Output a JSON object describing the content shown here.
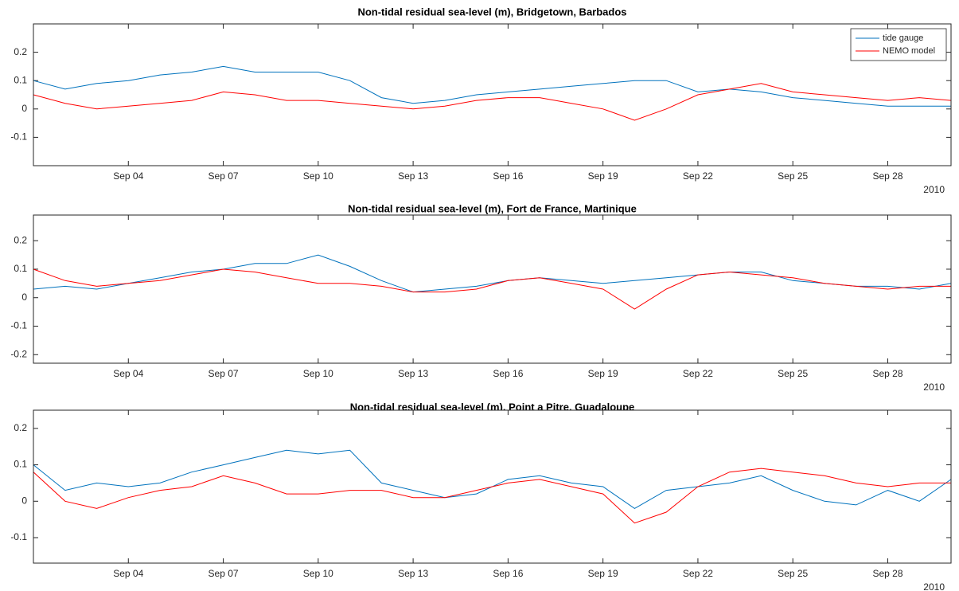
{
  "chart_data": [
    {
      "type": "line",
      "title": "Non-tidal residual sea-level (m), Bridgetown, Barbados",
      "x": [
        "2010-09-01",
        "2010-09-02",
        "2010-09-03",
        "2010-09-04",
        "2010-09-05",
        "2010-09-06",
        "2010-09-07",
        "2010-09-08",
        "2010-09-09",
        "2010-09-10",
        "2010-09-11",
        "2010-09-12",
        "2010-09-13",
        "2010-09-14",
        "2010-09-15",
        "2010-09-16",
        "2010-09-17",
        "2010-09-18",
        "2010-09-19",
        "2010-09-20",
        "2010-09-21",
        "2010-09-22",
        "2010-09-23",
        "2010-09-24",
        "2010-09-25",
        "2010-09-26",
        "2010-09-27",
        "2010-09-28",
        "2010-09-29",
        "2010-09-30"
      ],
      "xlim": [
        "2010-09-01",
        "2010-09-30"
      ],
      "xticks": [
        {
          "value": "2010-09-04",
          "label": "Sep 04"
        },
        {
          "value": "2010-09-07",
          "label": "Sep 07"
        },
        {
          "value": "2010-09-10",
          "label": "Sep 10"
        },
        {
          "value": "2010-09-13",
          "label": "Sep 13"
        },
        {
          "value": "2010-09-16",
          "label": "Sep 16"
        },
        {
          "value": "2010-09-19",
          "label": "Sep 19"
        },
        {
          "value": "2010-09-22",
          "label": "Sep 22"
        },
        {
          "value": "2010-09-25",
          "label": "Sep 25"
        },
        {
          "value": "2010-09-28",
          "label": "Sep 28"
        }
      ],
      "x_year_label": "2010",
      "ylim": [
        -0.2,
        0.3
      ],
      "yticks": [
        -0.1,
        0,
        0.1,
        0.2
      ],
      "legend": "upper right",
      "series": [
        {
          "name": "tide gauge",
          "color": "#0072bd",
          "values": [
            0.1,
            0.07,
            0.09,
            0.1,
            0.12,
            0.13,
            0.15,
            0.13,
            0.13,
            0.13,
            0.1,
            0.04,
            0.02,
            0.03,
            0.05,
            0.06,
            0.07,
            0.08,
            0.09,
            0.1,
            0.1,
            0.06,
            0.07,
            0.06,
            0.04,
            0.03,
            0.02,
            0.01,
            0.01,
            0.01
          ]
        },
        {
          "name": "NEMO model",
          "color": "#ff0000",
          "values": [
            0.05,
            0.02,
            0.0,
            0.01,
            0.02,
            0.03,
            0.06,
            0.05,
            0.03,
            0.03,
            0.02,
            0.01,
            0.0,
            0.01,
            0.03,
            0.04,
            0.04,
            0.02,
            0.0,
            -0.04,
            0.0,
            0.05,
            0.07,
            0.09,
            0.06,
            0.05,
            0.04,
            0.03,
            0.04,
            0.03
          ]
        }
      ]
    },
    {
      "type": "line",
      "title": "Non-tidal residual sea-level (m), Fort de France, Martinique",
      "x": [
        "2010-09-01",
        "2010-09-02",
        "2010-09-03",
        "2010-09-04",
        "2010-09-05",
        "2010-09-06",
        "2010-09-07",
        "2010-09-08",
        "2010-09-09",
        "2010-09-10",
        "2010-09-11",
        "2010-09-12",
        "2010-09-13",
        "2010-09-14",
        "2010-09-15",
        "2010-09-16",
        "2010-09-17",
        "2010-09-18",
        "2010-09-19",
        "2010-09-20",
        "2010-09-21",
        "2010-09-22",
        "2010-09-23",
        "2010-09-24",
        "2010-09-25",
        "2010-09-26",
        "2010-09-27",
        "2010-09-28",
        "2010-09-29",
        "2010-09-30"
      ],
      "xlim": [
        "2010-09-01",
        "2010-09-30"
      ],
      "xticks": [
        {
          "value": "2010-09-04",
          "label": "Sep 04"
        },
        {
          "value": "2010-09-07",
          "label": "Sep 07"
        },
        {
          "value": "2010-09-10",
          "label": "Sep 10"
        },
        {
          "value": "2010-09-13",
          "label": "Sep 13"
        },
        {
          "value": "2010-09-16",
          "label": "Sep 16"
        },
        {
          "value": "2010-09-19",
          "label": "Sep 19"
        },
        {
          "value": "2010-09-22",
          "label": "Sep 22"
        },
        {
          "value": "2010-09-25",
          "label": "Sep 25"
        },
        {
          "value": "2010-09-28",
          "label": "Sep 28"
        }
      ],
      "x_year_label": "2010",
      "ylim": [
        -0.23,
        0.29
      ],
      "yticks": [
        -0.2,
        -0.1,
        0,
        0.1,
        0.2
      ],
      "series": [
        {
          "color": "#0072bd",
          "values": [
            0.03,
            0.04,
            0.03,
            0.05,
            0.07,
            0.09,
            0.1,
            0.12,
            0.12,
            0.15,
            0.11,
            0.06,
            0.02,
            0.03,
            0.04,
            0.06,
            0.07,
            0.06,
            0.05,
            0.06,
            0.07,
            0.08,
            0.09,
            0.09,
            0.06,
            0.05,
            0.04,
            0.04,
            0.03,
            0.05
          ]
        },
        {
          "color": "#ff0000",
          "values": [
            0.1,
            0.06,
            0.04,
            0.05,
            0.06,
            0.08,
            0.1,
            0.09,
            0.07,
            0.05,
            0.05,
            0.04,
            0.02,
            0.02,
            0.03,
            0.06,
            0.07,
            0.05,
            0.03,
            -0.04,
            0.03,
            0.08,
            0.09,
            0.08,
            0.07,
            0.05,
            0.04,
            0.03,
            0.04,
            0.04
          ]
        }
      ]
    },
    {
      "type": "line",
      "title": "Non-tidal residual sea-level (m), Point a Pitre, Guadaloupe",
      "x": [
        "2010-09-01",
        "2010-09-02",
        "2010-09-03",
        "2010-09-04",
        "2010-09-05",
        "2010-09-06",
        "2010-09-07",
        "2010-09-08",
        "2010-09-09",
        "2010-09-10",
        "2010-09-11",
        "2010-09-12",
        "2010-09-13",
        "2010-09-14",
        "2010-09-15",
        "2010-09-16",
        "2010-09-17",
        "2010-09-18",
        "2010-09-19",
        "2010-09-20",
        "2010-09-21",
        "2010-09-22",
        "2010-09-23",
        "2010-09-24",
        "2010-09-25",
        "2010-09-26",
        "2010-09-27",
        "2010-09-28",
        "2010-09-29",
        "2010-09-30"
      ],
      "xlim": [
        "2010-09-01",
        "2010-09-30"
      ],
      "xticks": [
        {
          "value": "2010-09-04",
          "label": "Sep 04"
        },
        {
          "value": "2010-09-07",
          "label": "Sep 07"
        },
        {
          "value": "2010-09-10",
          "label": "Sep 10"
        },
        {
          "value": "2010-09-13",
          "label": "Sep 13"
        },
        {
          "value": "2010-09-16",
          "label": "Sep 16"
        },
        {
          "value": "2010-09-19",
          "label": "Sep 19"
        },
        {
          "value": "2010-09-22",
          "label": "Sep 22"
        },
        {
          "value": "2010-09-25",
          "label": "Sep 25"
        },
        {
          "value": "2010-09-28",
          "label": "Sep 28"
        }
      ],
      "x_year_label": "2010",
      "ylim": [
        -0.17,
        0.25
      ],
      "yticks": [
        -0.1,
        0,
        0.1,
        0.2
      ],
      "series": [
        {
          "color": "#0072bd",
          "values": [
            0.1,
            0.03,
            0.05,
            0.04,
            0.05,
            0.08,
            0.1,
            0.12,
            0.14,
            0.13,
            0.14,
            0.05,
            0.03,
            0.01,
            0.02,
            0.06,
            0.07,
            0.05,
            0.04,
            -0.02,
            0.03,
            0.04,
            0.05,
            0.07,
            0.03,
            0.0,
            -0.01,
            0.03,
            0.0,
            0.06
          ]
        },
        {
          "color": "#ff0000",
          "values": [
            0.08,
            0.0,
            -0.02,
            0.01,
            0.03,
            0.04,
            0.07,
            0.05,
            0.02,
            0.02,
            0.03,
            0.03,
            0.01,
            0.01,
            0.03,
            0.05,
            0.06,
            0.04,
            0.02,
            -0.06,
            -0.03,
            0.04,
            0.08,
            0.09,
            0.08,
            0.07,
            0.05,
            0.04,
            0.05,
            0.05
          ]
        }
      ]
    }
  ]
}
